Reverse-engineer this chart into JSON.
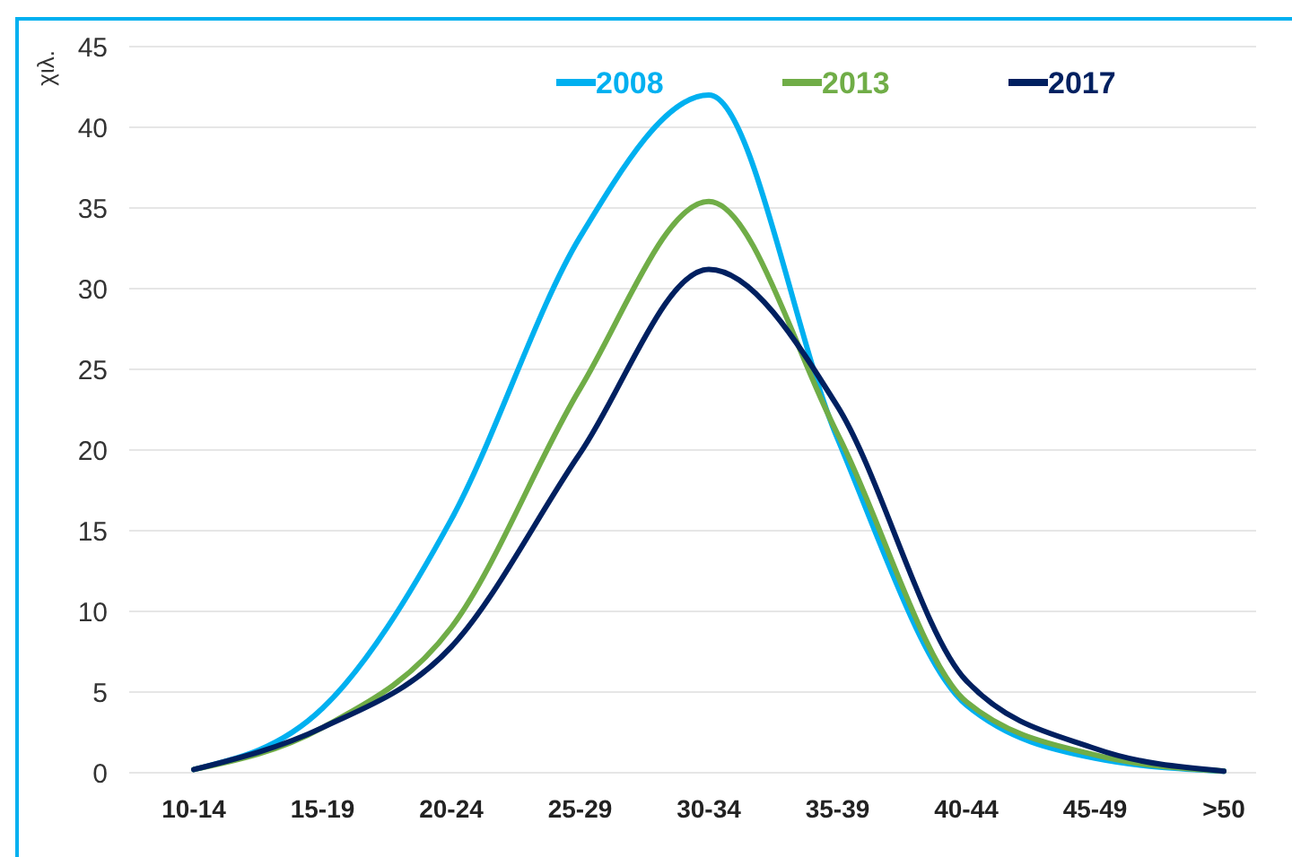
{
  "chart_data": {
    "type": "line",
    "ylabel": "χιλ.",
    "categories": [
      "10-14",
      "15-19",
      "20-24",
      "25-29",
      "30-34",
      "35-39",
      "40-44",
      "45-49",
      ">50"
    ],
    "series": [
      {
        "name": "2008",
        "color": "#00b0f0",
        "values": [
          0.2,
          4,
          15.7,
          33.2,
          42,
          20.7,
          4.2,
          0.9,
          0.1
        ]
      },
      {
        "name": "2013",
        "color": "#70ad47",
        "values": [
          0.2,
          2.8,
          9,
          23.8,
          35.4,
          21,
          4.4,
          1.1,
          0.1
        ]
      },
      {
        "name": "2017",
        "color": "#002060",
        "values": [
          0.2,
          2.8,
          7.8,
          19.8,
          31.2,
          22.7,
          5.7,
          1.5,
          0.1
        ]
      }
    ],
    "ylim": [
      0,
      45
    ],
    "yticks": [
      0,
      5,
      10,
      15,
      20,
      25,
      30,
      35,
      40,
      45
    ],
    "grid": "y",
    "legend": "top right",
    "marker": "none",
    "line_style": "solid"
  }
}
